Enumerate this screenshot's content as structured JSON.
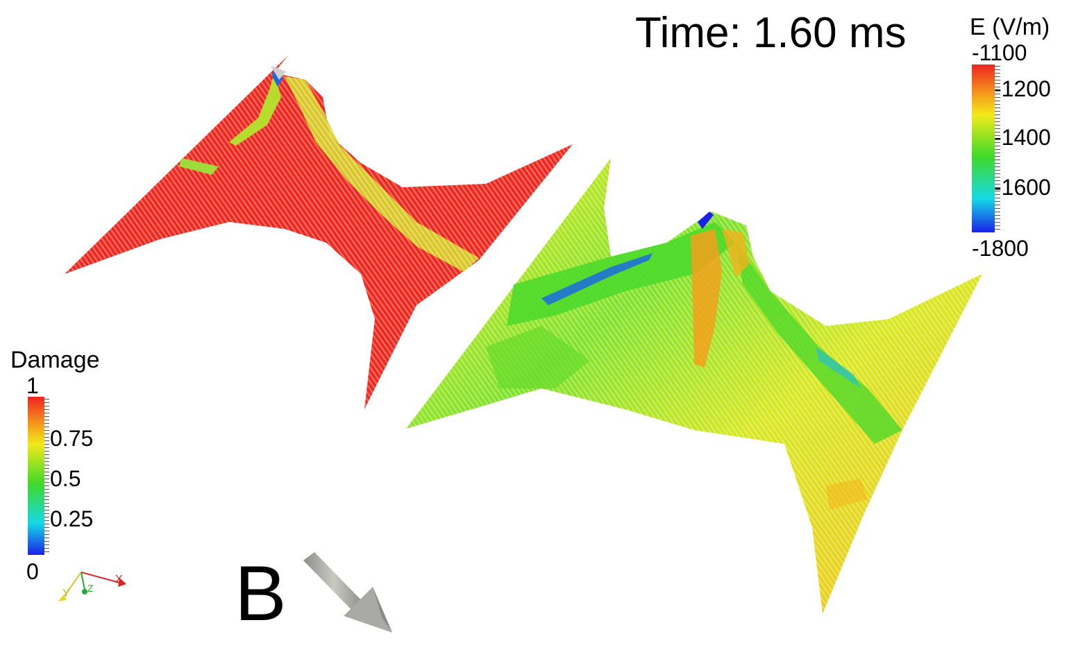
{
  "time_label": "Time: 1.60 ms",
  "panel_label": "B",
  "e_colorbar": {
    "title": "E (V/m)",
    "max_label": "-1100",
    "min_label": "-1800",
    "ticks": [
      "-1200",
      "-1400",
      "-1600"
    ]
  },
  "damage_colorbar": {
    "title": "Damage",
    "max_label": "1",
    "min_label": "0",
    "ticks": [
      "0.75",
      "0.5",
      "0.25"
    ]
  },
  "axes": {
    "x": "X",
    "y": "Y",
    "z": "Z"
  },
  "colors": {
    "red": "#ee2222",
    "orange": "#f59a1c",
    "yellow": "#f2ea1a",
    "green": "#3fd92a",
    "cyan": "#16d9e6",
    "blue": "#1a22e8"
  }
}
